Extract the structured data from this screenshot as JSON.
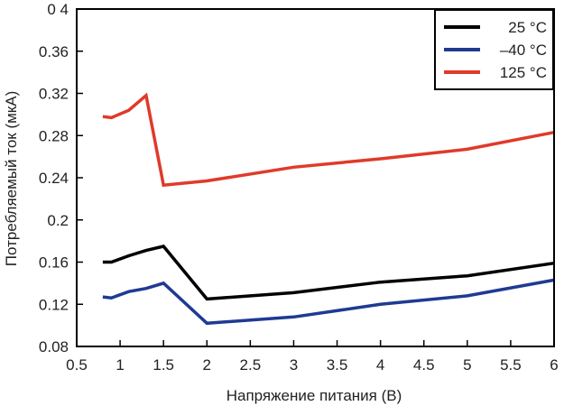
{
  "chart_data": {
    "type": "line",
    "title": "",
    "xlabel": "Напряжение питания (В)",
    "ylabel": "Потребляемый ток (мкА)",
    "xlim": [
      0.5,
      6
    ],
    "ylim": [
      0.08,
      0.4
    ],
    "x_ticks": [
      "0.5",
      "1",
      "1.5",
      "2",
      "2.5",
      "3",
      "3.5",
      "4",
      "4.5",
      "5",
      "5.5",
      "6"
    ],
    "y_ticks": [
      "0.08",
      "0.12",
      "0.16",
      "0.2",
      "0.24",
      "0.28",
      "0.32",
      "0.36",
      "0 4"
    ],
    "grid": false,
    "legend_position": "top-right",
    "series": [
      {
        "name": "25 °C",
        "color": "#000000",
        "points": [
          [
            0.8,
            0.16
          ],
          [
            0.9,
            0.16
          ],
          [
            1.1,
            0.166
          ],
          [
            1.3,
            0.171
          ],
          [
            1.5,
            0.175
          ],
          [
            2.0,
            0.125
          ],
          [
            3.0,
            0.131
          ],
          [
            4.0,
            0.141
          ],
          [
            5.0,
            0.147
          ],
          [
            6.0,
            0.159
          ]
        ]
      },
      {
        "name": "–40 °C",
        "color": "#1f3a93",
        "points": [
          [
            0.8,
            0.127
          ],
          [
            0.9,
            0.126
          ],
          [
            1.1,
            0.132
          ],
          [
            1.3,
            0.135
          ],
          [
            1.5,
            0.14
          ],
          [
            2.0,
            0.102
          ],
          [
            3.0,
            0.108
          ],
          [
            4.0,
            0.12
          ],
          [
            5.0,
            0.128
          ],
          [
            6.0,
            0.143
          ]
        ]
      },
      {
        "name": "125 °C",
        "color": "#e03a2a",
        "points": [
          [
            0.8,
            0.298
          ],
          [
            0.9,
            0.297
          ],
          [
            1.1,
            0.304
          ],
          [
            1.3,
            0.318
          ],
          [
            1.5,
            0.233
          ],
          [
            2.0,
            0.237
          ],
          [
            3.0,
            0.25
          ],
          [
            4.0,
            0.258
          ],
          [
            5.0,
            0.267
          ],
          [
            6.0,
            0.283
          ]
        ]
      }
    ]
  }
}
